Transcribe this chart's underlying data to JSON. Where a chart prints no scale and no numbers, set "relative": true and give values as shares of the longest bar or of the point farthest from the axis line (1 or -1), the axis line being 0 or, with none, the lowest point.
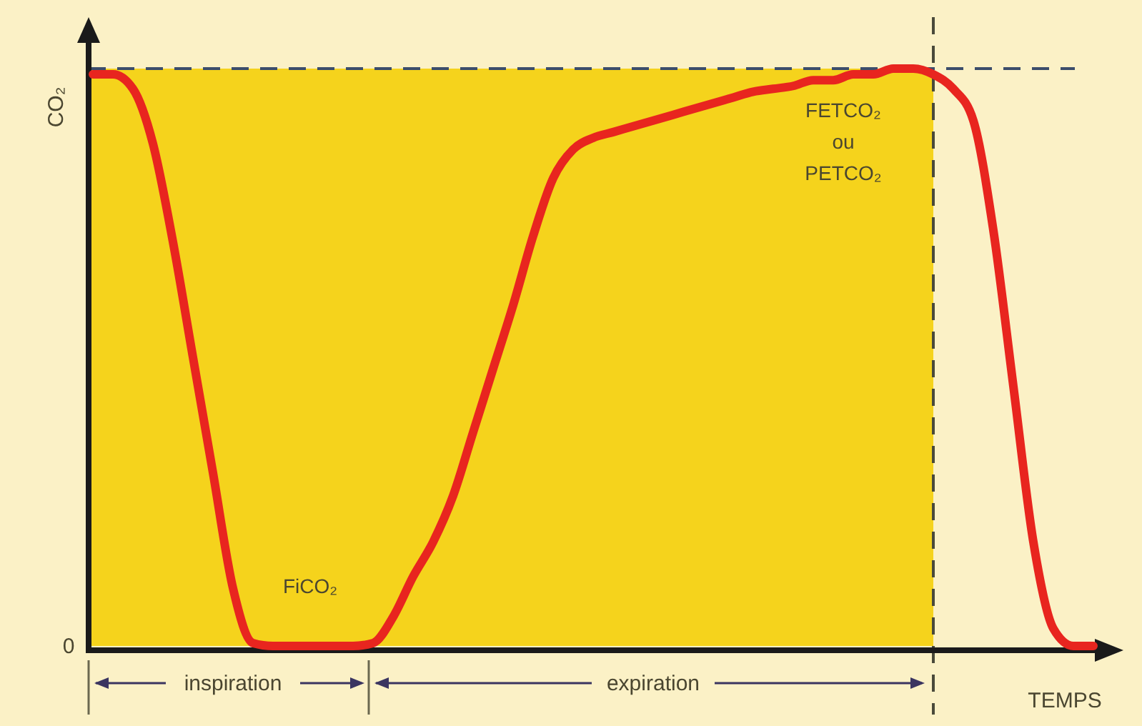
{
  "chart_data": {
    "type": "line",
    "relative": true,
    "xlabel": "TEMPS",
    "ylabel": "CO₂",
    "categories": [
      null,
      null,
      null,
      null,
      null,
      null,
      null,
      null,
      null,
      null,
      null,
      null,
      null,
      null,
      null,
      null,
      null,
      null,
      null,
      null,
      null,
      null,
      null,
      null,
      null,
      null,
      null,
      null,
      null,
      null,
      null,
      null,
      null,
      null,
      null,
      null,
      null,
      null,
      null,
      null,
      null,
      null,
      null,
      null,
      null,
      null,
      null,
      null,
      null,
      null,
      null
    ],
    "series": [
      {
        "color": "#e8251f",
        "values": [
          0.99,
          0.99,
          0.965,
          0.87,
          0.7,
          0.5,
          0.3,
          0.1,
          0.005,
          0,
          0,
          0,
          0,
          0,
          0.005,
          0.05,
          0.12,
          0.18,
          0.26,
          0.37,
          0.48,
          0.59,
          0.71,
          0.81,
          0.86,
          0.88,
          0.89,
          0.9,
          0.91,
          0.92,
          0.93,
          0.94,
          0.95,
          0.96,
          0.965,
          0.97,
          0.98,
          0.98,
          0.99,
          0.99,
          1,
          1,
          0.99,
          0.965,
          0.91,
          0.72,
          0.45,
          0.18,
          0.03,
          0,
          0
        ]
      }
    ],
    "line_style": "solid",
    "ref_lines": [
      {
        "axis": "y",
        "value": 1,
        "color": "#3b4d6b",
        "line_style": "dashed"
      }
    ],
    "annotations": [
      "0",
      "FiCO₂",
      "FETCO₂ ou PETCO₂",
      "inspiration",
      "expiration"
    ]
  }
}
